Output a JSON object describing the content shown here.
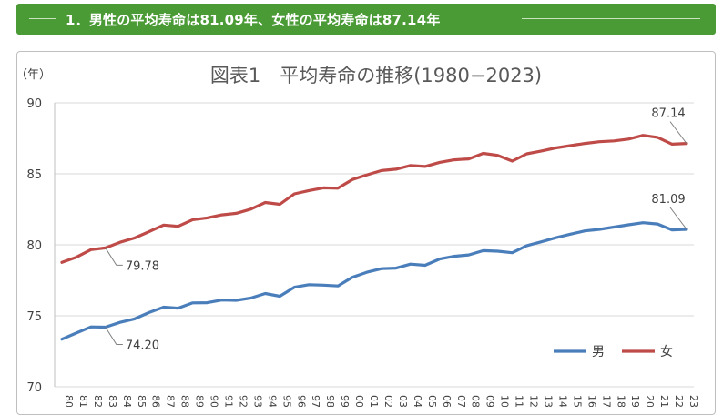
{
  "header": {
    "title": "1．男性の平均寿命は81.09年、女性の平均寿命は87.14年"
  },
  "chart_data": {
    "type": "line",
    "title": "図表1　平均寿命の推移(1980−2023)",
    "ylabel": "（年）",
    "xlabel": "",
    "ylim": [
      70,
      90
    ],
    "yticks": [
      "70",
      "75",
      "80",
      "85",
      "90"
    ],
    "grid": "horizontal",
    "legend_position": "bottom-right",
    "categories": [
      "80",
      "81",
      "82",
      "83",
      "84",
      "85",
      "86",
      "87",
      "88",
      "89",
      "90",
      "91",
      "92",
      "93",
      "94",
      "95",
      "96",
      "97",
      "98",
      "99",
      "00",
      "01",
      "02",
      "03",
      "04",
      "05",
      "06",
      "07",
      "08",
      "09",
      "10",
      "11",
      "12",
      "13",
      "14",
      "15",
      "16",
      "17",
      "18",
      "19",
      "20",
      "21",
      "22",
      "23"
    ],
    "series": [
      {
        "name": "男",
        "color": "#4a7ebb",
        "values": [
          73.35,
          73.79,
          74.22,
          74.2,
          74.54,
          74.78,
          75.23,
          75.61,
          75.54,
          75.91,
          75.92,
          76.11,
          76.09,
          76.25,
          76.57,
          76.38,
          77.01,
          77.19,
          77.16,
          77.1,
          77.72,
          78.07,
          78.32,
          78.36,
          78.64,
          78.56,
          79.0,
          79.19,
          79.29,
          79.59,
          79.55,
          79.44,
          79.94,
          80.21,
          80.5,
          80.75,
          80.98,
          81.09,
          81.25,
          81.41,
          81.56,
          81.47,
          81.05,
          81.09
        ]
      },
      {
        "name": "女",
        "color": "#be4b48",
        "values": [
          78.76,
          79.13,
          79.66,
          79.78,
          80.18,
          80.48,
          80.93,
          81.39,
          81.3,
          81.77,
          81.9,
          82.11,
          82.22,
          82.51,
          82.98,
          82.85,
          83.59,
          83.82,
          84.01,
          83.99,
          84.6,
          84.93,
          85.23,
          85.33,
          85.59,
          85.52,
          85.81,
          85.99,
          86.05,
          86.44,
          86.3,
          85.9,
          86.41,
          86.61,
          86.83,
          86.99,
          87.14,
          87.26,
          87.32,
          87.45,
          87.71,
          87.57,
          87.09,
          87.14
        ]
      }
    ],
    "annotations": [
      {
        "series": 1,
        "category": "83",
        "label": "79.78"
      },
      {
        "series": 0,
        "category": "83",
        "label": "74.20"
      },
      {
        "series": 1,
        "category": "23",
        "label": "87.14"
      },
      {
        "series": 0,
        "category": "23",
        "label": "81.09"
      }
    ]
  }
}
